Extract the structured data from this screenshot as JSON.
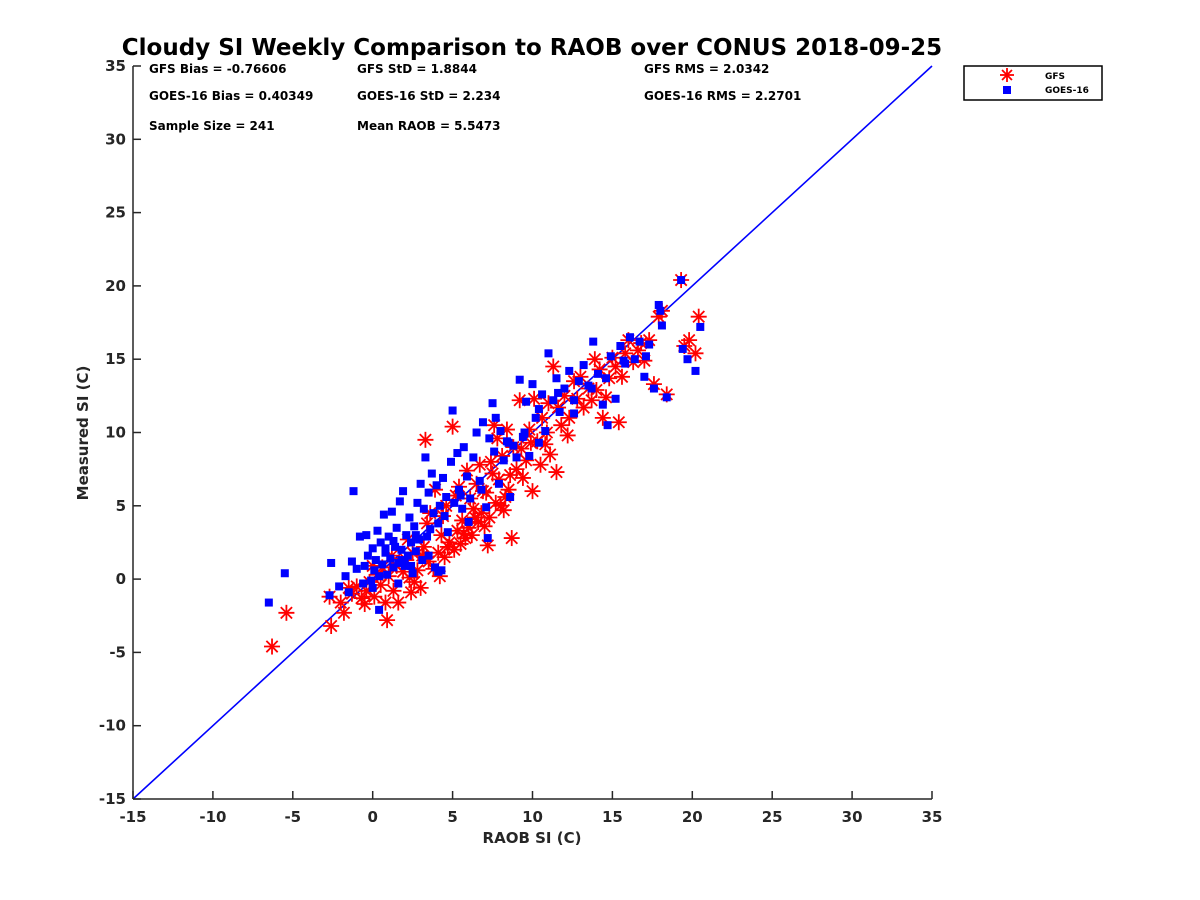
{
  "chart_data": {
    "type": "scatter",
    "title": "Cloudy SI Weekly Comparison to RAOB over CONUS 2018-09-25",
    "xlabel": "RAOB SI (C)",
    "ylabel": "Measured SI (C)",
    "xlim": [
      -15,
      35
    ],
    "ylim": [
      -15,
      35
    ],
    "xticks": [
      -15,
      -10,
      -5,
      0,
      5,
      10,
      15,
      20,
      25,
      30,
      35
    ],
    "yticks": [
      -15,
      -10,
      -5,
      0,
      5,
      10,
      15,
      20,
      25,
      30,
      35
    ],
    "grid": false,
    "legend_position": "outside-top-right",
    "reference_line": {
      "name": "1:1 line",
      "x": [
        -15,
        35
      ],
      "y": [
        -15,
        35
      ],
      "color": "#0000ff"
    },
    "stats": [
      "GFS Bias = -0.76606",
      "GFS StD = 1.8844",
      "GFS RMS = 2.0342",
      "GOES-16 Bias = 0.40349",
      "GOES-16 StD = 2.234",
      "GOES-16 RMS = 2.2701",
      "Sample Size = 241",
      "Mean RAOB = 5.5473"
    ],
    "series": [
      {
        "name": "GFS",
        "marker": "asterisk",
        "color": "#ff0000",
        "points": [
          [
            -6.3,
            -4.6
          ],
          [
            -5.4,
            -2.3
          ],
          [
            -2.6,
            -3.2
          ],
          [
            -2.7,
            -1.2
          ],
          [
            -2.0,
            -1.6
          ],
          [
            -1.8,
            -2.3
          ],
          [
            -1.3,
            -1.0
          ],
          [
            -1.0,
            -0.5
          ],
          [
            -0.7,
            -1.3
          ],
          [
            -0.4,
            -0.8
          ],
          [
            -0.2,
            -0.2
          ],
          [
            0.1,
            -1.2
          ],
          [
            0.3,
            0.3
          ],
          [
            0.5,
            -0.4
          ],
          [
            0.8,
            -1.6
          ],
          [
            0.9,
            -2.8
          ],
          [
            1.0,
            0.2
          ],
          [
            1.3,
            -0.8
          ],
          [
            1.5,
            0.9
          ],
          [
            1.6,
            -1.6
          ],
          [
            1.9,
            0.5
          ],
          [
            2.1,
            1.3
          ],
          [
            2.3,
            0.1
          ],
          [
            2.5,
            1.8
          ],
          [
            2.6,
            -0.2
          ],
          [
            2.8,
            0.6
          ],
          [
            3.0,
            -0.6
          ],
          [
            3.2,
            2.2
          ],
          [
            3.3,
            9.5
          ],
          [
            3.5,
            1.2
          ],
          [
            3.6,
            4.5
          ],
          [
            3.8,
            0.7
          ],
          [
            3.9,
            6.1
          ],
          [
            4.1,
            1.8
          ],
          [
            4.2,
            0.2
          ],
          [
            4.3,
            3.0
          ],
          [
            4.5,
            1.5
          ],
          [
            4.6,
            5.0
          ],
          [
            4.8,
            2.5
          ],
          [
            5.0,
            10.4
          ],
          [
            5.1,
            2.0
          ],
          [
            5.3,
            3.3
          ],
          [
            5.4,
            6.3
          ],
          [
            5.5,
            2.4
          ],
          [
            5.6,
            4.0
          ],
          [
            5.8,
            2.8
          ],
          [
            5.9,
            7.4
          ],
          [
            6.0,
            3.5
          ],
          [
            6.1,
            5.5
          ],
          [
            6.2,
            3.0
          ],
          [
            6.3,
            4.8
          ],
          [
            6.5,
            6.5
          ],
          [
            6.6,
            3.9
          ],
          [
            6.7,
            7.8
          ],
          [
            6.8,
            4.5
          ],
          [
            7.0,
            3.6
          ],
          [
            7.1,
            5.9
          ],
          [
            7.2,
            2.3
          ],
          [
            7.3,
            4.2
          ],
          [
            7.5,
            7.2
          ],
          [
            7.6,
            10.5
          ],
          [
            7.7,
            5.2
          ],
          [
            7.8,
            9.6
          ],
          [
            7.9,
            6.8
          ],
          [
            8.0,
            5.0
          ],
          [
            8.1,
            8.4
          ],
          [
            8.2,
            4.7
          ],
          [
            8.4,
            10.2
          ],
          [
            8.5,
            6.1
          ],
          [
            8.7,
            2.8
          ],
          [
            8.8,
            9.0
          ],
          [
            9.0,
            7.5
          ],
          [
            9.2,
            12.2
          ],
          [
            9.3,
            8.9
          ],
          [
            9.4,
            6.9
          ],
          [
            9.6,
            8.1
          ],
          [
            9.8,
            10.2
          ],
          [
            10.0,
            6.0
          ],
          [
            10.1,
            12.3
          ],
          [
            10.3,
            9.4
          ],
          [
            10.5,
            7.8
          ],
          [
            10.6,
            11.0
          ],
          [
            10.8,
            9.2
          ],
          [
            11.0,
            12.0
          ],
          [
            11.1,
            8.5
          ],
          [
            11.3,
            14.5
          ],
          [
            11.5,
            7.3
          ],
          [
            11.6,
            11.7
          ],
          [
            11.8,
            10.5
          ],
          [
            12.0,
            12.5
          ],
          [
            12.3,
            11.0
          ],
          [
            12.6,
            13.5
          ],
          [
            12.8,
            12.3
          ],
          [
            13.0,
            13.8
          ],
          [
            13.2,
            11.7
          ],
          [
            13.5,
            13.0
          ],
          [
            13.7,
            12.2
          ],
          [
            13.9,
            15.0
          ],
          [
            14.2,
            14.3
          ],
          [
            14.4,
            11.0
          ],
          [
            14.6,
            12.4
          ],
          [
            14.8,
            13.7
          ],
          [
            15.0,
            15.1
          ],
          [
            15.2,
            14.5
          ],
          [
            15.4,
            10.7
          ],
          [
            15.6,
            13.8
          ],
          [
            15.8,
            15.4
          ],
          [
            16.0,
            16.3
          ],
          [
            16.3,
            14.8
          ],
          [
            16.6,
            15.6
          ],
          [
            17.0,
            14.9
          ],
          [
            17.3,
            16.3
          ],
          [
            17.6,
            13.3
          ],
          [
            17.9,
            17.9
          ],
          [
            18.1,
            18.3
          ],
          [
            18.4,
            12.6
          ],
          [
            19.3,
            20.4
          ],
          [
            19.5,
            15.9
          ],
          [
            19.8,
            16.3
          ],
          [
            20.2,
            15.4
          ],
          [
            20.4,
            17.9
          ],
          [
            2.2,
            2.7
          ],
          [
            3.1,
            1.6
          ],
          [
            4.4,
            4.3
          ],
          [
            5.2,
            5.7
          ],
          [
            6.4,
            4.2
          ],
          [
            7.4,
            8.0
          ],
          [
            8.6,
            7.1
          ],
          [
            9.9,
            9.3
          ],
          [
            10.9,
            10.0
          ],
          [
            0.0,
            0.9
          ],
          [
            -1.5,
            -0.6
          ],
          [
            1.2,
            1.6
          ],
          [
            3.4,
            3.8
          ],
          [
            4.7,
            2.2
          ],
          [
            5.7,
            3.1
          ],
          [
            6.9,
            6.0
          ],
          [
            8.3,
            5.6
          ],
          [
            12.2,
            9.8
          ],
          [
            14.0,
            12.9
          ],
          [
            16.8,
            16.1
          ],
          [
            2.4,
            -0.9
          ],
          [
            0.6,
            0.8
          ],
          [
            -0.5,
            -1.7
          ]
        ]
      },
      {
        "name": "GOES-16",
        "marker": "square",
        "color": "#0000ff",
        "points": [
          [
            -6.5,
            -1.6
          ],
          [
            -5.5,
            0.4
          ],
          [
            -2.7,
            -1.1
          ],
          [
            -2.6,
            1.1
          ],
          [
            -2.1,
            -0.5
          ],
          [
            -1.7,
            0.2
          ],
          [
            -1.5,
            -0.9
          ],
          [
            -1.3,
            1.2
          ],
          [
            -1.2,
            6.0
          ],
          [
            -1.0,
            0.7
          ],
          [
            -0.8,
            2.9
          ],
          [
            -0.6,
            -0.3
          ],
          [
            -0.5,
            0.9
          ],
          [
            -0.4,
            3.0
          ],
          [
            -0.3,
            1.6
          ],
          [
            -0.1,
            -0.1
          ],
          [
            0.0,
            2.1
          ],
          [
            0.1,
            0.6
          ],
          [
            0.2,
            1.3
          ],
          [
            0.3,
            3.3
          ],
          [
            0.4,
            0.2
          ],
          [
            0.5,
            2.5
          ],
          [
            0.6,
            1.0
          ],
          [
            0.7,
            4.4
          ],
          [
            0.8,
            1.8
          ],
          [
            0.9,
            0.3
          ],
          [
            1.0,
            2.9
          ],
          [
            1.1,
            1.4
          ],
          [
            1.2,
            4.6
          ],
          [
            1.3,
            0.8
          ],
          [
            1.4,
            2.2
          ],
          [
            1.5,
            3.5
          ],
          [
            1.6,
            1.1
          ],
          [
            1.7,
            5.3
          ],
          [
            1.8,
            2.0
          ],
          [
            1.9,
            6.0
          ],
          [
            2.0,
            0.9
          ],
          [
            2.1,
            3.0
          ],
          [
            2.2,
            1.6
          ],
          [
            2.3,
            4.2
          ],
          [
            2.4,
            2.5
          ],
          [
            2.5,
            0.4
          ],
          [
            2.6,
            3.6
          ],
          [
            2.7,
            1.9
          ],
          [
            2.8,
            5.2
          ],
          [
            2.9,
            2.7
          ],
          [
            3.0,
            6.5
          ],
          [
            3.1,
            1.3
          ],
          [
            3.2,
            4.8
          ],
          [
            3.3,
            8.3
          ],
          [
            3.4,
            2.9
          ],
          [
            3.5,
            5.9
          ],
          [
            3.6,
            3.4
          ],
          [
            3.7,
            7.2
          ],
          [
            3.8,
            4.5
          ],
          [
            3.9,
            0.8
          ],
          [
            4.0,
            6.4
          ],
          [
            4.1,
            3.8
          ],
          [
            4.2,
            5.0
          ],
          [
            4.3,
            0.6
          ],
          [
            4.4,
            6.9
          ],
          [
            4.5,
            4.3
          ],
          [
            4.6,
            5.6
          ],
          [
            4.7,
            3.2
          ],
          [
            4.9,
            8.0
          ],
          [
            5.0,
            11.5
          ],
          [
            5.1,
            5.2
          ],
          [
            5.3,
            8.6
          ],
          [
            5.4,
            6.1
          ],
          [
            5.6,
            4.8
          ],
          [
            5.7,
            9.0
          ],
          [
            5.9,
            7.0
          ],
          [
            6.1,
            5.5
          ],
          [
            6.3,
            8.3
          ],
          [
            6.5,
            10.0
          ],
          [
            6.7,
            6.7
          ],
          [
            6.9,
            10.7
          ],
          [
            7.1,
            4.9
          ],
          [
            7.3,
            9.6
          ],
          [
            7.5,
            12.0
          ],
          [
            7.6,
            8.7
          ],
          [
            7.7,
            11.0
          ],
          [
            7.9,
            6.5
          ],
          [
            8.0,
            10.1
          ],
          [
            8.2,
            8.1
          ],
          [
            8.4,
            9.4
          ],
          [
            8.6,
            5.6
          ],
          [
            8.8,
            9.1
          ],
          [
            9.0,
            8.3
          ],
          [
            9.2,
            13.6
          ],
          [
            9.4,
            9.7
          ],
          [
            9.6,
            12.1
          ],
          [
            9.8,
            8.4
          ],
          [
            10.0,
            13.3
          ],
          [
            10.2,
            11.0
          ],
          [
            10.4,
            9.3
          ],
          [
            10.6,
            12.6
          ],
          [
            10.8,
            10.1
          ],
          [
            11.0,
            15.4
          ],
          [
            11.3,
            12.2
          ],
          [
            11.5,
            13.7
          ],
          [
            11.7,
            11.4
          ],
          [
            12.0,
            13.0
          ],
          [
            12.3,
            14.2
          ],
          [
            12.6,
            12.2
          ],
          [
            12.9,
            13.5
          ],
          [
            13.2,
            14.6
          ],
          [
            13.5,
            13.2
          ],
          [
            13.8,
            16.2
          ],
          [
            14.1,
            14.0
          ],
          [
            14.4,
            11.9
          ],
          [
            14.6,
            13.7
          ],
          [
            14.9,
            15.2
          ],
          [
            15.2,
            12.3
          ],
          [
            15.5,
            15.9
          ],
          [
            15.8,
            14.7
          ],
          [
            16.1,
            16.5
          ],
          [
            16.4,
            15.0
          ],
          [
            16.7,
            16.2
          ],
          [
            17.0,
            13.8
          ],
          [
            17.3,
            16.0
          ],
          [
            17.6,
            13.0
          ],
          [
            17.9,
            18.7
          ],
          [
            18.1,
            17.3
          ],
          [
            18.4,
            12.4
          ],
          [
            19.3,
            20.4
          ],
          [
            19.4,
            15.7
          ],
          [
            19.7,
            15.0
          ],
          [
            20.2,
            14.2
          ],
          [
            20.5,
            17.2
          ],
          [
            0.0,
            -0.6
          ],
          [
            0.4,
            -2.1
          ],
          [
            1.6,
            -0.3
          ],
          [
            2.0,
            1.1
          ],
          [
            2.7,
            3.0
          ],
          [
            0.8,
            2.1
          ],
          [
            1.3,
            2.6
          ],
          [
            1.8,
            1.3
          ],
          [
            2.4,
            0.9
          ],
          [
            3.5,
            1.6
          ],
          [
            4.1,
            0.5
          ],
          [
            5.5,
            5.7
          ],
          [
            6.0,
            3.9
          ],
          [
            6.8,
            6.1
          ],
          [
            7.2,
            2.8
          ],
          [
            8.5,
            9.3
          ],
          [
            9.5,
            10.0
          ],
          [
            10.4,
            11.6
          ],
          [
            11.6,
            12.7
          ],
          [
            12.6,
            11.3
          ],
          [
            13.7,
            13.0
          ],
          [
            14.7,
            10.5
          ],
          [
            15.7,
            14.9
          ],
          [
            17.1,
            15.2
          ],
          [
            18.0,
            18.3
          ]
        ]
      }
    ]
  }
}
